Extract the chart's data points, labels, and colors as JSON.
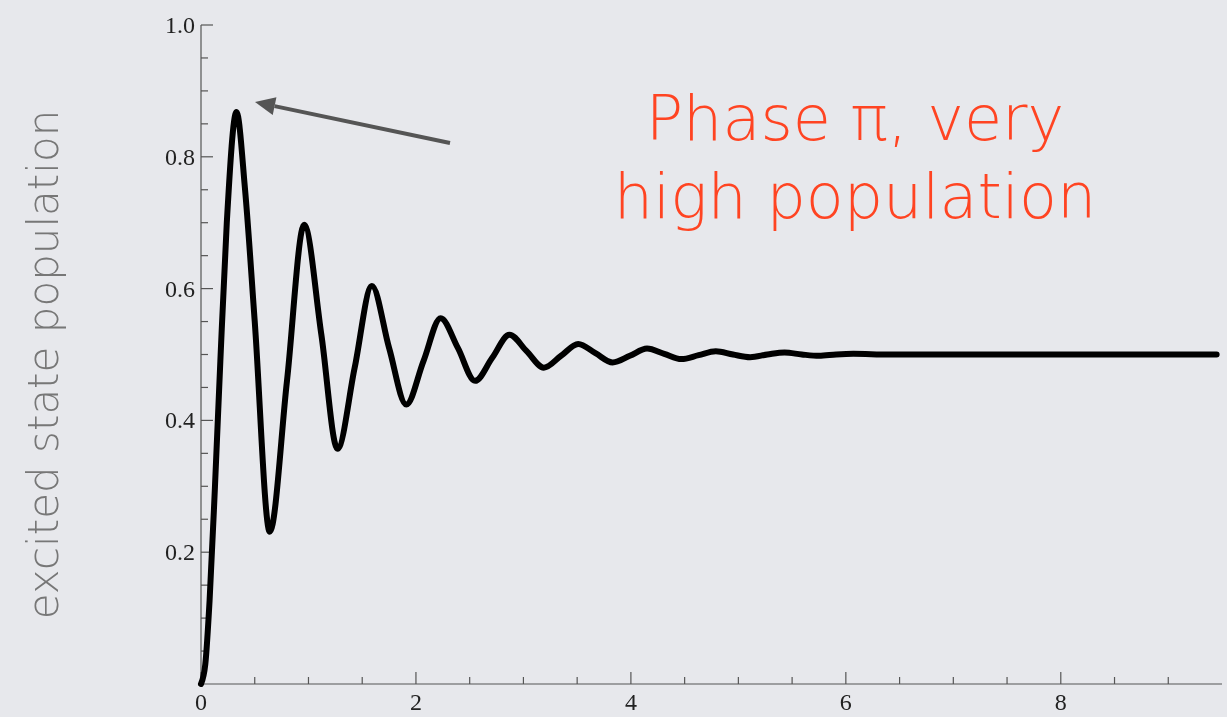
{
  "chart_data": {
    "type": "line",
    "ylabel": "excited state population",
    "annotations": [
      "Phase π, very high population"
    ],
    "xlim": [
      0,
      9.5
    ],
    "xticks": [
      0,
      {
        "value": 0.5,
        "label": null
      },
      {
        "value": 1,
        "label": null
      },
      {
        "value": 1.5,
        "label": null
      },
      2,
      {
        "value": 2.5,
        "label": null
      },
      {
        "value": 3,
        "label": null
      },
      {
        "value": 3.5,
        "label": null
      },
      4,
      {
        "value": 4.5,
        "label": null
      },
      {
        "value": 5,
        "label": null
      },
      {
        "value": 5.5,
        "label": null
      },
      6,
      {
        "value": 6.5,
        "label": null
      },
      {
        "value": 7,
        "label": null
      },
      {
        "value": 7.5,
        "label": null
      },
      8,
      {
        "value": 8.5,
        "label": null
      },
      {
        "value": 9,
        "label": null
      }
    ],
    "ylim": [
      0,
      1
    ],
    "yticks": [
      {
        "value": 0.05,
        "label": null
      },
      {
        "value": 0.1,
        "label": null
      },
      {
        "value": 0.15,
        "label": null
      },
      0.2,
      {
        "value": 0.25,
        "label": null
      },
      {
        "value": 0.3,
        "label": null
      },
      {
        "value": 0.35,
        "label": null
      },
      0.4,
      {
        "value": 0.45,
        "label": null
      },
      {
        "value": 0.5,
        "label": null
      },
      {
        "value": 0.55,
        "label": null
      },
      0.6,
      {
        "value": 0.65,
        "label": null
      },
      {
        "value": 0.7,
        "label": null
      },
      {
        "value": 0.75,
        "label": null
      },
      0.8,
      {
        "value": 0.85,
        "label": null
      },
      {
        "value": 0.9,
        "label": null
      },
      {
        "value": 0.95,
        "label": null
      },
      {
        "value": 1,
        "label": "1.0"
      }
    ],
    "grid": false,
    "marker": "none",
    "line_style": "solid",
    "series": [
      {
        "color": "#000000",
        "x": [
          0,
          0.04,
          0.08,
          0.13,
          0.18,
          0.24,
          0.33,
          0.41,
          0.5,
          0.64,
          0.8,
          0.96,
          1.12,
          1.27,
          1.43,
          1.59,
          1.75,
          1.91,
          2.07,
          2.23,
          2.39,
          2.55,
          2.71,
          2.87,
          3.03,
          3.19,
          3.35,
          3.51,
          3.67,
          3.83,
          3.99,
          4.15,
          4.31,
          4.47,
          4.63,
          4.79,
          4.95,
          5.11,
          5.27,
          5.43,
          5.59,
          5.75,
          5.91,
          6.07,
          6.4,
          7,
          8,
          9.45
        ],
        "values": [
          0,
          0.03,
          0.127,
          0.3,
          0.49,
          0.7,
          0.868,
          0.75,
          0.55,
          0.231,
          0.46,
          0.697,
          0.53,
          0.357,
          0.48,
          0.604,
          0.51,
          0.424,
          0.49,
          0.555,
          0.51,
          0.46,
          0.495,
          0.53,
          0.505,
          0.48,
          0.498,
          0.516,
          0.502,
          0.488,
          0.498,
          0.509,
          0.501,
          0.493,
          0.499,
          0.505,
          0.5,
          0.496,
          0.5,
          0.503,
          0.5,
          0.498,
          0.5,
          0.501,
          0.5,
          0.5,
          0.5,
          0.5
        ]
      }
    ]
  }
}
